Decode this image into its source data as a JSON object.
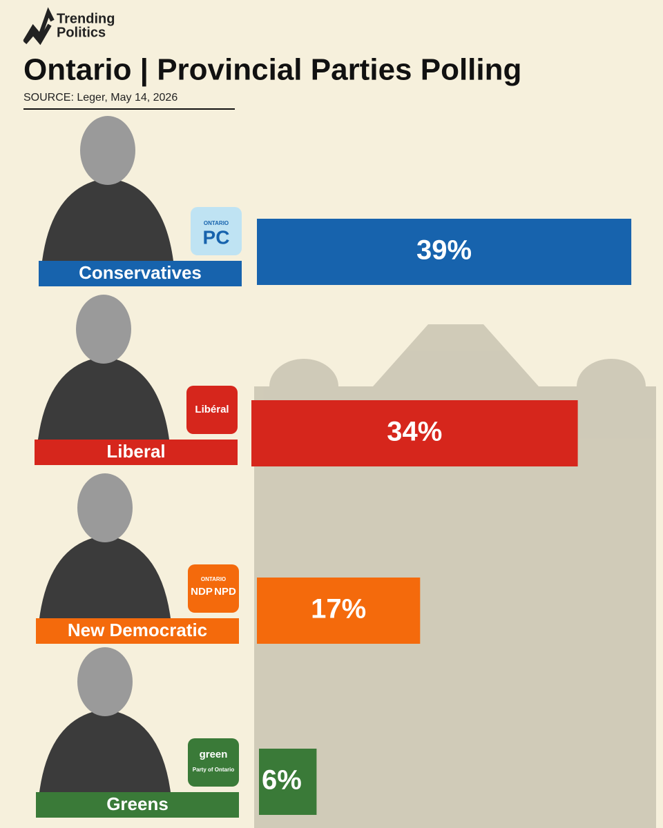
{
  "brand": [
    "Trending",
    "Politics"
  ],
  "chart_data": {
    "type": "hbar",
    "title": "Ontario | Provincial Parties Polling",
    "subtitle": "SOURCE: Leger, May 14, 2026",
    "categories": [
      "Conservatives",
      "Liberal",
      "New Democratic",
      "Greens"
    ],
    "values": [
      39,
      34,
      17,
      6
    ],
    "value_labels": [
      "39%",
      "34%",
      "17%",
      "6%"
    ],
    "colors": [
      "#1763ad",
      "#d6261c",
      "#f46a0c",
      "#3a7a38"
    ],
    "logos": [
      [
        "ONTARIO",
        "PC"
      ],
      [
        "Libéral"
      ],
      [
        "ONTARIO",
        "NDP",
        "NPD"
      ],
      [
        "green",
        "Party of Ontario"
      ]
    ]
  }
}
